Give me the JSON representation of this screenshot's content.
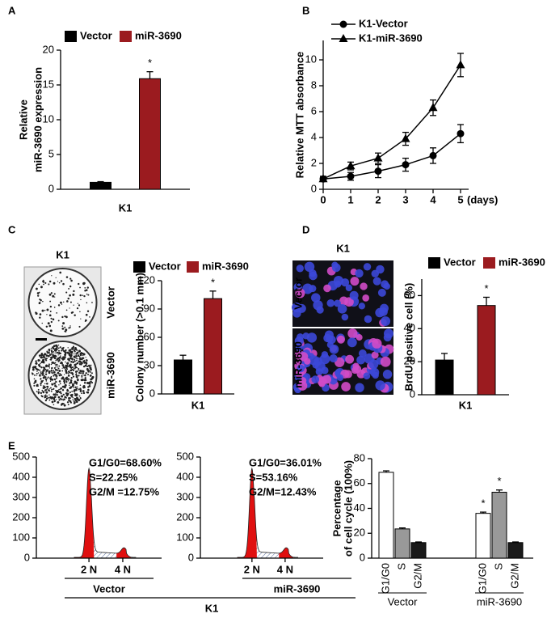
{
  "chart_data": [
    {
      "type": "bar",
      "panel": "A",
      "ylabel": [
        "Relative",
        "miR-3690 expression"
      ],
      "categories": [
        "K1"
      ],
      "series": [
        {
          "name": "Vector",
          "color": "#000000",
          "values": [
            1.0
          ],
          "errors": [
            0.1
          ],
          "annotations": [
            null
          ]
        },
        {
          "name": "miR-3690",
          "color": "#9b1b1f",
          "values": [
            15.9
          ],
          "errors": [
            1.0
          ],
          "annotations": [
            "*"
          ]
        }
      ],
      "ylim": [
        0,
        20
      ],
      "yticks": [
        0,
        5,
        10,
        15,
        20
      ]
    },
    {
      "type": "line",
      "panel": "B",
      "ylabel": [
        "Relative MTT absorbance"
      ],
      "xlabel": "(days)",
      "x": [
        0,
        1,
        2,
        3,
        4,
        5
      ],
      "series": [
        {
          "name": "K1-Vector",
          "color": "#000000",
          "marker": "circle",
          "values": [
            0.8,
            1.0,
            1.4,
            1.9,
            2.6,
            4.3
          ],
          "errors": [
            0.2,
            0.3,
            0.5,
            0.5,
            0.6,
            0.7
          ]
        },
        {
          "name": "K1-miR-3690",
          "color": "#000000",
          "marker": "triangle",
          "values": [
            0.8,
            1.8,
            2.4,
            3.9,
            6.3,
            9.6
          ],
          "errors": [
            0.2,
            0.3,
            0.4,
            0.5,
            0.6,
            0.9
          ]
        }
      ],
      "xlim": [
        0,
        5
      ],
      "xticks": [
        0,
        1,
        2,
        3,
        4,
        5
      ],
      "ylim": [
        0,
        11.5
      ],
      "yticks": [
        0,
        2,
        4,
        6,
        8,
        10
      ]
    },
    {
      "type": "bar",
      "panel": "C",
      "image_title": "K1",
      "image_rows": [
        "Vector",
        "miR-3690"
      ],
      "image_kind": "plates",
      "ylabel": [
        "Colony number (>0.1 mm)"
      ],
      "categories": [
        "K1"
      ],
      "series": [
        {
          "name": "Vector",
          "color": "#000000",
          "values": [
            36
          ],
          "errors": [
            5
          ],
          "annotations": [
            null
          ]
        },
        {
          "name": "miR-3690",
          "color": "#9b1b1f",
          "values": [
            101
          ],
          "errors": [
            8
          ],
          "annotations": [
            "*"
          ]
        }
      ],
      "ylim": [
        0,
        120
      ],
      "yticks": [
        0,
        30,
        60,
        90,
        120
      ]
    },
    {
      "type": "bar",
      "panel": "D",
      "image_title": "K1",
      "image_rows": [
        "Vector",
        "miR-3690"
      ],
      "image_kind": "cells",
      "ylabel": [
        "BrdU positive cell (%)"
      ],
      "categories": [
        "K1"
      ],
      "series": [
        {
          "name": "Vector",
          "color": "#000000",
          "values": [
            21
          ],
          "errors": [
            4
          ],
          "annotations": [
            null
          ]
        },
        {
          "name": "miR-3690",
          "color": "#9b1b1f",
          "values": [
            54
          ],
          "errors": [
            5
          ],
          "annotations": [
            "*"
          ]
        }
      ],
      "ylim": [
        0,
        70
      ],
      "yticks": [
        0,
        20,
        40,
        60
      ]
    },
    {
      "type": "flow",
      "panel": "E",
      "categories": [
        "2 N",
        "4 N"
      ],
      "xlabel": "Vector",
      "group_label": "K1",
      "annotations": [
        "G1/G0=68.60%",
        "S=22.25%",
        "G2/M =12.75%"
      ],
      "ylim": [
        0,
        500
      ],
      "yticks": [
        0,
        100,
        200,
        300,
        400,
        500
      ]
    },
    {
      "type": "flow",
      "categories": [
        "2 N",
        "4 N"
      ],
      "xlabel": "miR-3690",
      "annotations": [
        "G1/G0=36.01%",
        "S=53.16%",
        "G2/M=12.43%"
      ],
      "ylim": [
        0,
        500
      ],
      "yticks": [
        0,
        100,
        200,
        300,
        400,
        500
      ]
    },
    {
      "type": "bar",
      "ylabel": [
        "Percentage",
        "of cell cycle (100%)"
      ],
      "categories": [
        "Vector",
        "miR-3690"
      ],
      "series": [
        {
          "name": "G1/G0",
          "color": "#ffffff",
          "values": [
            69,
            36
          ],
          "errors": [
            1.2,
            1.0
          ],
          "annotations": [
            null,
            "*"
          ]
        },
        {
          "name": "S",
          "color": "#999999",
          "values": [
            23.5,
            53
          ],
          "errors": [
            0.8,
            1.8
          ],
          "annotations": [
            null,
            "*"
          ]
        },
        {
          "name": "G2/M",
          "color": "#1a1a1a",
          "values": [
            12.5,
            12.5
          ],
          "errors": [
            0.5,
            0.5
          ],
          "annotations": [
            null,
            null
          ]
        }
      ],
      "ylim": [
        0,
        80
      ],
      "yticks": [
        0,
        20,
        40,
        60,
        80
      ]
    }
  ]
}
